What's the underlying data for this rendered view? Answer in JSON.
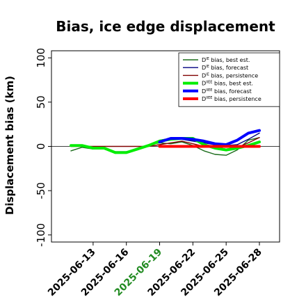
{
  "chart_data": {
    "type": "line",
    "title": "Bias, ice edge displacement",
    "xlabel": "",
    "ylabel": "Displacement bias (km)",
    "ylim": [
      -108,
      108
    ],
    "yticks": [
      -100,
      -50,
      0,
      50,
      100
    ],
    "x_dates": [
      "2025-06-11",
      "2025-06-12",
      "2025-06-13",
      "2025-06-14",
      "2025-06-15",
      "2025-06-16",
      "2025-06-17",
      "2025-06-18",
      "2025-06-19",
      "2025-06-20",
      "2025-06-21",
      "2025-06-22",
      "2025-06-23",
      "2025-06-24",
      "2025-06-25",
      "2025-06-26",
      "2025-06-27",
      "2025-06-28"
    ],
    "xticks": [
      "2025-06-13",
      "2025-06-16",
      "2025-06-19",
      "2025-06-22",
      "2025-06-25",
      "2025-06-28"
    ],
    "highlight_tick": "2025-06-19",
    "highlight_color": "#228B22",
    "legend_position": "upper right",
    "grid": false,
    "series": [
      {
        "name": "D^IE bias, best est.",
        "sup": "IE",
        "suffix": " bias, best est.",
        "color": "#1a6b1a",
        "width": 1.4,
        "values": [
          -5,
          -1,
          -3,
          -3,
          -7,
          -7,
          -4,
          2,
          4,
          3,
          5,
          1,
          -5,
          -9,
          -10,
          -4,
          7,
          10
        ]
      },
      {
        "name": "D^IE bias, forecast",
        "sup": "IE",
        "suffix": " bias, forecast",
        "color": "#000080",
        "width": 1.4,
        "values": [
          1,
          1,
          -2,
          -2,
          -6,
          -6,
          -3,
          1,
          7,
          9,
          8,
          6,
          4,
          2,
          1,
          2,
          8,
          15
        ]
      },
      {
        "name": "D^IE bias, persistence",
        "sup": "IE",
        "suffix": " bias, persistence",
        "color": "#800000",
        "width": 1.4,
        "values": [
          0,
          0,
          0,
          0,
          0,
          0,
          0,
          0,
          2,
          4,
          6,
          3,
          0,
          -1,
          -3,
          -1,
          4,
          10
        ]
      },
      {
        "name": "D^IIEE bias, best est.",
        "sup": "IIEE",
        "suffix": " bias, best est.",
        "color": "#00ee00",
        "width": 4,
        "values": [
          1,
          1,
          -2,
          -2,
          -7,
          -7,
          -3,
          1,
          6,
          8,
          9,
          9,
          2,
          -2,
          -4,
          -2,
          1,
          5
        ]
      },
      {
        "name": "D^IIEE bias, forecast",
        "sup": "IIEE",
        "suffix": " bias, forecast",
        "color": "#0000ff",
        "width": 4,
        "values": [
          null,
          null,
          null,
          null,
          null,
          null,
          null,
          null,
          5,
          9,
          9,
          8,
          6,
          3,
          2,
          7,
          15,
          18
        ]
      },
      {
        "name": "D^IIEE bias, persistence",
        "sup": "IIEE",
        "suffix": " bias, persistence",
        "color": "#ff0000",
        "width": 4,
        "values": [
          null,
          null,
          null,
          null,
          null,
          null,
          null,
          null,
          0,
          0,
          0,
          0,
          0,
          0,
          0,
          0,
          0,
          0
        ]
      }
    ],
    "prefix": "D"
  }
}
